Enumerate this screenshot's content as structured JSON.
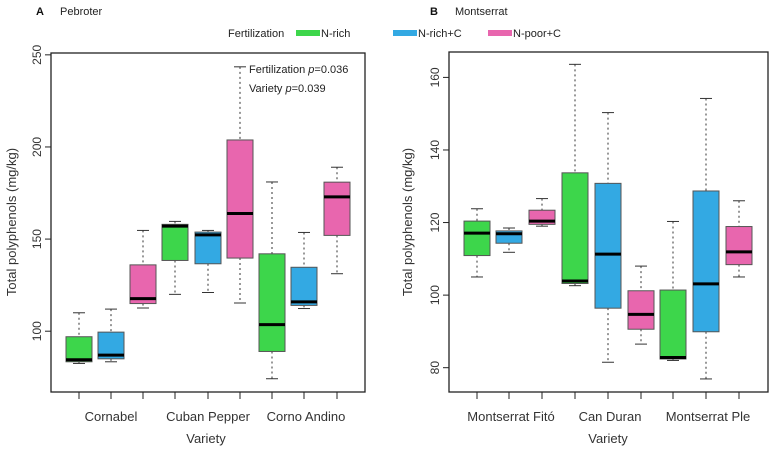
{
  "legend": {
    "title": "Fertilization",
    "entries": [
      {
        "label": "N-rich",
        "color": "#3dd64b"
      },
      {
        "label": "N-rich+C",
        "color": "#33a9e3"
      },
      {
        "label": "N-poor+C",
        "color": "#e866ae"
      }
    ]
  },
  "chart_data": [
    {
      "type": "boxplot",
      "panel_letter": "A",
      "title": "Pebroter",
      "xlabel": "Variety",
      "ylabel": "Total polyphenols (mg/kg)",
      "ylim": [
        67,
        251
      ],
      "yticks": [
        100,
        150,
        200,
        250
      ],
      "categories": [
        "Cornabel",
        "Cuban Pepper",
        "Corno Andino"
      ],
      "annotation": {
        "line1_prefix": "Fertilization ",
        "line1_p": "p",
        "line1_value": "=0.036",
        "line2_prefix": "Variety ",
        "line2_p": "p",
        "line2_value": "=0.039"
      },
      "series": [
        {
          "name": "N-rich",
          "boxes": [
            {
              "min": 82.5,
              "q1": 83.4,
              "median": 84.5,
              "q3": 97,
              "max": 110
            },
            {
              "min": 120,
              "q1": 138.4,
              "median": 157,
              "q3": 158,
              "max": 159.6
            },
            {
              "min": 74.2,
              "q1": 89,
              "median": 103.6,
              "q3": 142,
              "max": 181
            }
          ]
        },
        {
          "name": "N-rich+C",
          "boxes": [
            {
              "min": 83.4,
              "q1": 85,
              "median": 87,
              "q3": 99.5,
              "max": 112
            },
            {
              "min": 121,
              "q1": 136.6,
              "median": 152.3,
              "q3": 153.8,
              "max": 154.7
            },
            {
              "min": 112.3,
              "q1": 114,
              "median": 115.9,
              "q3": 134.7,
              "max": 153.6
            }
          ]
        },
        {
          "name": "N-poor+C",
          "boxes": [
            {
              "min": 112.6,
              "q1": 115,
              "median": 117.7,
              "q3": 136,
              "max": 154.7
            },
            {
              "min": 115.3,
              "q1": 139.7,
              "median": 163.9,
              "q3": 203.8,
              "max": 243.5
            },
            {
              "min": 131.2,
              "q1": 152,
              "median": 172.9,
              "q3": 180.9,
              "max": 189
            }
          ]
        }
      ]
    },
    {
      "type": "boxplot",
      "panel_letter": "B",
      "title": "Montserrat",
      "xlabel": "Variety",
      "ylabel": "Total polyphenols (mg/kg)",
      "ylim": [
        73.3,
        167
      ],
      "yticks": [
        80,
        100,
        120,
        140,
        160
      ],
      "categories": [
        "Montserrat Fitó",
        "Can Duran",
        "Montserrat Ple"
      ],
      "series": [
        {
          "name": "N-rich",
          "boxes": [
            {
              "min": 105,
              "q1": 110.9,
              "median": 117.1,
              "q3": 120.4,
              "max": 123.8
            },
            {
              "min": 102.6,
              "q1": 103.2,
              "median": 103.9,
              "q3": 133.7,
              "max": 163.6
            },
            {
              "min": 82,
              "q1": 82.4,
              "median": 82.8,
              "q3": 101.4,
              "max": 120.3
            }
          ]
        },
        {
          "name": "N-rich+C",
          "boxes": [
            {
              "min": 111.8,
              "q1": 114.3,
              "median": 116.9,
              "q3": 117.7,
              "max": 118.5
            },
            {
              "min": 81.5,
              "q1": 96.4,
              "median": 111.3,
              "q3": 130.8,
              "max": 150.3
            },
            {
              "min": 76.9,
              "q1": 89.9,
              "median": 103.1,
              "q3": 128.7,
              "max": 154.2
            }
          ]
        },
        {
          "name": "N-poor+C",
          "boxes": [
            {
              "min": 119,
              "q1": 119.5,
              "median": 120.4,
              "q3": 123.4,
              "max": 126.6
            },
            {
              "min": 86.5,
              "q1": 90.6,
              "median": 94.7,
              "q3": 101.2,
              "max": 108
            },
            {
              "min": 105,
              "q1": 108.4,
              "median": 111.9,
              "q3": 118.9,
              "max": 126
            }
          ]
        }
      ]
    }
  ]
}
